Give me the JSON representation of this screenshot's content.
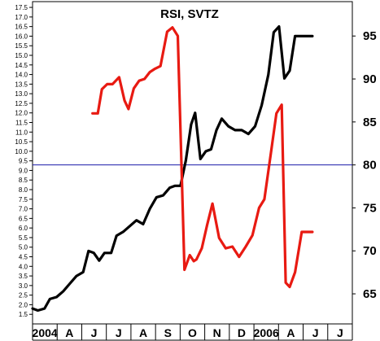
{
  "chart_data": {
    "type": "line",
    "title": "RSI, SVTZ",
    "grid": false,
    "legend": "none",
    "x_labels": [
      "2004",
      "A",
      "J",
      "J",
      "A",
      "S",
      "O",
      "N",
      "D",
      "2006",
      "A",
      "J",
      "J"
    ],
    "x_range": [
      0,
      24
    ],
    "left_axis": {
      "ticks": [
        "1.5",
        "2.0",
        "2.5",
        "3.0",
        "3.5",
        "4.0",
        "4.5",
        "5.0",
        "5.5",
        "6.0",
        "6.5",
        "7.0",
        "7.5",
        "8.0",
        "8.5",
        "9.0",
        "9.5",
        "10.0",
        "10.5",
        "11.0",
        "11.5",
        "12.0",
        "12.5",
        "13.0",
        "13.5",
        "14.0",
        "14.5",
        "15.0",
        "15.5",
        "16.0",
        "16.5",
        "17.0",
        "17.5"
      ],
      "range": [
        1.0,
        17.8
      ]
    },
    "right_axis": {
      "ticks": [
        "65",
        "70",
        "75",
        "80",
        "85",
        "90",
        "95"
      ],
      "range": [
        61.5,
        99.0
      ]
    },
    "reference_line": {
      "value": 80,
      "axis": "right",
      "color": "#1a1aa8"
    },
    "series": [
      {
        "color": "#000000",
        "axis": "left",
        "x": [
          0,
          0.4,
          0.9,
          1.3,
          1.8,
          2.3,
          2.8,
          3.3,
          3.8,
          4.2,
          4.6,
          5.0,
          5.4,
          5.9,
          6.3,
          6.8,
          7.3,
          7.8,
          8.3,
          8.8,
          9.3,
          9.8,
          10.3,
          10.7,
          11.1,
          11.5,
          11.9,
          12.2,
          12.6,
          13.0,
          13.4,
          13.8,
          14.2,
          14.7,
          15.2,
          15.7,
          16.2,
          16.7,
          17.2,
          17.7,
          18.1,
          18.5,
          18.9,
          19.3,
          19.7,
          20.1,
          20.5,
          21.0
        ],
        "y": [
          1.8,
          1.7,
          1.8,
          2.3,
          2.4,
          2.7,
          3.1,
          3.5,
          3.7,
          4.8,
          4.7,
          4.3,
          4.7,
          4.7,
          5.6,
          5.8,
          6.1,
          6.4,
          6.2,
          7.0,
          7.6,
          7.7,
          8.1,
          8.2,
          8.2,
          9.5,
          11.4,
          12.0,
          9.6,
          10.0,
          10.1,
          11.1,
          11.7,
          11.3,
          11.1,
          11.1,
          10.9,
          11.3,
          12.4,
          14.0,
          16.2,
          16.5,
          13.8,
          14.2,
          16.0,
          16.0,
          16.0,
          16.0
        ]
      },
      {
        "color": "#e81a12",
        "axis": "right",
        "x": [
          4.5,
          4.9,
          5.2,
          5.6,
          6.0,
          6.5,
          6.9,
          7.2,
          7.6,
          8.0,
          8.4,
          8.8,
          9.2,
          9.6,
          10.1,
          10.5,
          10.9,
          11.4,
          11.8,
          12.1,
          12.3,
          12.7,
          13.1,
          13.5,
          14.0,
          14.5,
          15.0,
          15.5,
          16.0,
          16.5,
          17.0,
          17.4,
          17.9,
          18.3,
          18.7,
          19.0,
          19.3,
          19.7,
          20.2,
          20.7,
          21.0
        ],
        "y": [
          86.0,
          86.0,
          88.8,
          89.4,
          89.4,
          90.2,
          87.5,
          86.5,
          88.9,
          89.8,
          90.0,
          90.8,
          91.2,
          91.5,
          95.5,
          96.0,
          95.0,
          67.8,
          69.5,
          68.8,
          69.0,
          70.3,
          73.0,
          75.5,
          71.5,
          70.3,
          70.5,
          69.3,
          70.5,
          71.8,
          75.0,
          76.0,
          81.5,
          86.0,
          87.0,
          66.3,
          65.8,
          67.5,
          72.2,
          72.2,
          72.2
        ]
      }
    ]
  }
}
